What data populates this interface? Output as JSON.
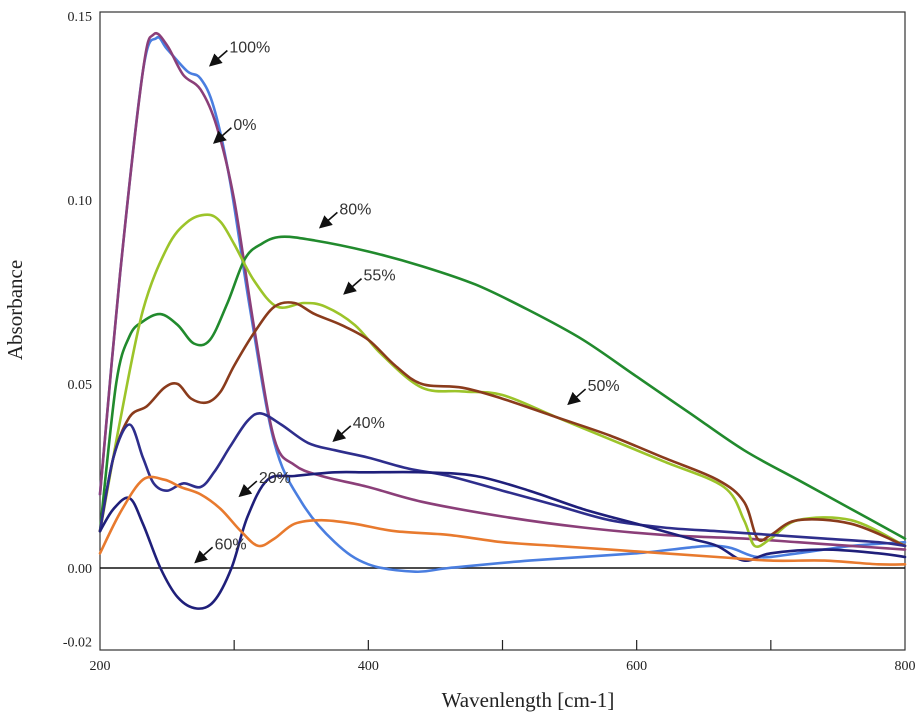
{
  "chart_data": {
    "type": "line",
    "title": "",
    "xlabel": "Wavenlength [cm-1]",
    "ylabel": "Absorbance",
    "xlim": [
      200,
      800
    ],
    "ylim": [
      -0.02,
      0.15
    ],
    "x_ticks": [
      "200",
      "400",
      "600",
      "800"
    ],
    "y_ticks": [
      "0.15",
      "0.10",
      "0.05",
      "0.00",
      "-0.02"
    ],
    "x_tick_values": [
      200,
      400,
      600,
      800
    ],
    "y_tick_values": [
      0.15,
      0.1,
      0.05,
      0.0,
      -0.02
    ],
    "series": [
      {
        "name": "100%",
        "color": "#4a7ee0",
        "x": [
          200,
          215,
          232,
          242,
          250,
          265,
          275,
          285,
          297,
          312,
          330,
          350,
          375,
          400,
          435,
          460,
          520,
          600,
          660,
          690,
          720,
          760,
          800
        ],
        "y": [
          0.02,
          0.08,
          0.135,
          0.144,
          0.141,
          0.135,
          0.133,
          0.125,
          0.105,
          0.07,
          0.034,
          0.018,
          0.007,
          0.001,
          -0.001,
          0.0,
          0.002,
          0.004,
          0.006,
          0.003,
          0.004,
          0.006,
          0.007
        ]
      },
      {
        "name": "0%",
        "color": "#8b3f79",
        "x": [
          200,
          215,
          232,
          240,
          250,
          262,
          275,
          287,
          300,
          315,
          330,
          345,
          365,
          400,
          440,
          500,
          560,
          620,
          680,
          720,
          760,
          800
        ],
        "y": [
          0.02,
          0.08,
          0.135,
          0.145,
          0.142,
          0.134,
          0.13,
          0.12,
          0.1,
          0.065,
          0.035,
          0.028,
          0.025,
          0.022,
          0.018,
          0.014,
          0.011,
          0.009,
          0.008,
          0.007,
          0.006,
          0.005
        ]
      },
      {
        "name": "80%",
        "color": "#218a2d",
        "x": [
          200,
          212,
          222,
          232,
          245,
          258,
          270,
          282,
          295,
          308,
          320,
          335,
          360,
          400,
          440,
          480,
          520,
          560,
          600,
          640,
          680,
          720,
          760,
          800
        ],
        "y": [
          0.01,
          0.05,
          0.063,
          0.067,
          0.069,
          0.066,
          0.061,
          0.062,
          0.072,
          0.084,
          0.088,
          0.09,
          0.089,
          0.086,
          0.082,
          0.077,
          0.07,
          0.062,
          0.052,
          0.042,
          0.032,
          0.024,
          0.016,
          0.008
        ]
      },
      {
        "name": "50%",
        "color": "#9cc42a",
        "x": [
          200,
          215,
          232,
          250,
          265,
          280,
          290,
          300,
          315,
          332,
          352,
          368,
          390,
          410,
          440,
          470,
          500,
          540,
          580,
          620,
          665,
          680,
          688,
          700,
          720,
          760,
          800
        ],
        "y": [
          0.01,
          0.04,
          0.07,
          0.087,
          0.094,
          0.096,
          0.094,
          0.088,
          0.078,
          0.071,
          0.072,
          0.071,
          0.066,
          0.058,
          0.049,
          0.048,
          0.047,
          0.041,
          0.035,
          0.029,
          0.022,
          0.013,
          0.006,
          0.008,
          0.013,
          0.013,
          0.006
        ]
      },
      {
        "name": "55%",
        "color": "#8a3b1c",
        "x": [
          200,
          210,
          222,
          235,
          248,
          258,
          268,
          280,
          290,
          300,
          315,
          330,
          345,
          360,
          380,
          400,
          420,
          440,
          470,
          500,
          540,
          580,
          620,
          660,
          680,
          690,
          700,
          720,
          760,
          800
        ],
        "y": [
          0.01,
          0.03,
          0.041,
          0.044,
          0.049,
          0.05,
          0.046,
          0.045,
          0.048,
          0.055,
          0.064,
          0.071,
          0.072,
          0.069,
          0.066,
          0.062,
          0.055,
          0.05,
          0.049,
          0.046,
          0.041,
          0.036,
          0.03,
          0.024,
          0.018,
          0.008,
          0.009,
          0.013,
          0.012,
          0.006
        ]
      },
      {
        "name": "40%",
        "color": "#2e2e8c",
        "x": [
          200,
          210,
          222,
          232,
          240,
          250,
          262,
          275,
          285,
          297,
          310,
          320,
          335,
          355,
          375,
          400,
          430,
          460,
          500,
          540,
          580,
          620,
          660,
          700,
          740,
          780,
          800
        ],
        "y": [
          0.01,
          0.03,
          0.039,
          0.03,
          0.023,
          0.021,
          0.023,
          0.022,
          0.026,
          0.033,
          0.04,
          0.042,
          0.039,
          0.034,
          0.032,
          0.03,
          0.027,
          0.025,
          0.021,
          0.017,
          0.013,
          0.011,
          0.01,
          0.009,
          0.008,
          0.007,
          0.006
        ]
      },
      {
        "name": "60%",
        "color": "#1f1f7a",
        "x": [
          200,
          210,
          222,
          232,
          245,
          258,
          272,
          285,
          298,
          310,
          325,
          345,
          375,
          400,
          440,
          480,
          520,
          560,
          600,
          640,
          660,
          680,
          700,
          740,
          780,
          800
        ],
        "y": [
          0.01,
          0.016,
          0.019,
          0.012,
          0.0,
          -0.008,
          -0.011,
          -0.009,
          0.0,
          0.014,
          0.024,
          0.025,
          0.026,
          0.026,
          0.026,
          0.025,
          0.021,
          0.016,
          0.012,
          0.008,
          0.006,
          0.002,
          0.004,
          0.005,
          0.004,
          0.003
        ]
      },
      {
        "name": "20%",
        "color": "#e87a2e",
        "x": [
          200,
          215,
          232,
          248,
          260,
          275,
          290,
          305,
          318,
          330,
          345,
          365,
          390,
          420,
          460,
          500,
          540,
          580,
          620,
          660,
          700,
          740,
          780,
          800
        ],
        "y": [
          0.004,
          0.015,
          0.024,
          0.024,
          0.022,
          0.02,
          0.016,
          0.01,
          0.006,
          0.008,
          0.012,
          0.013,
          0.012,
          0.01,
          0.009,
          0.007,
          0.006,
          0.005,
          0.004,
          0.003,
          0.002,
          0.002,
          0.001,
          0.001
        ]
      }
    ],
    "annotations": [
      {
        "text": "100%",
        "x": 283,
        "y": 0.139
      },
      {
        "text": "0%",
        "x": 286,
        "y": 0.118
      },
      {
        "text": "80%",
        "x": 365,
        "y": 0.095
      },
      {
        "text": "55%",
        "x": 383,
        "y": 0.077
      },
      {
        "text": "50%",
        "x": 550,
        "y": 0.047
      },
      {
        "text": "40%",
        "x": 375,
        "y": 0.037
      },
      {
        "text": "20%",
        "x": 305,
        "y": 0.022
      },
      {
        "text": "60%",
        "x": 272,
        "y": 0.004
      }
    ]
  }
}
